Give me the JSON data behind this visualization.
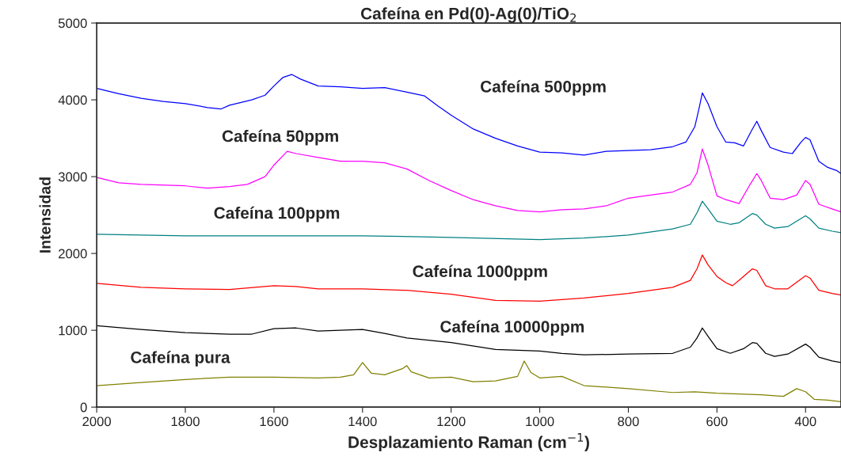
{
  "chart_data": {
    "type": "line",
    "title": "Cafeína en Pd(0)-Ag(0)/TiO$_{2}$",
    "xlabel": "Desplazamiento Raman (cm$^{−1}$)",
    "ylabel": "Intensidad",
    "xlim": [
      2000,
      320
    ],
    "xticks": [
      2000,
      1800,
      1600,
      1400,
      1200,
      1000,
      800,
      600,
      400
    ],
    "ylim": [
      0,
      5000
    ],
    "yticks": [
      0,
      1000,
      2000,
      3000,
      4000,
      5000
    ],
    "grid": false,
    "series": [
      {
        "name": "Cafeína 500ppm",
        "color": "#0000ff",
        "x": [
          2000,
          1950,
          1900,
          1850,
          1800,
          1750,
          1720,
          1700,
          1650,
          1620,
          1600,
          1580,
          1560,
          1540,
          1500,
          1450,
          1400,
          1350,
          1300,
          1260,
          1230,
          1200,
          1150,
          1100,
          1050,
          1000,
          950,
          900,
          850,
          800,
          750,
          700,
          670,
          650,
          640,
          633,
          620,
          600,
          580,
          560,
          540,
          520,
          510,
          500,
          480,
          450,
          430,
          410,
          400,
          390,
          370,
          350,
          330,
          320
        ],
        "values": [
          4150,
          4080,
          4020,
          3980,
          3950,
          3900,
          3880,
          3930,
          4000,
          4060,
          4180,
          4290,
          4330,
          4270,
          4180,
          4170,
          4150,
          4160,
          4100,
          4050,
          3920,
          3800,
          3620,
          3500,
          3400,
          3320,
          3310,
          3280,
          3330,
          3340,
          3350,
          3390,
          3450,
          3650,
          3900,
          4090,
          3950,
          3650,
          3450,
          3440,
          3400,
          3620,
          3720,
          3600,
          3380,
          3320,
          3300,
          3450,
          3510,
          3480,
          3200,
          3120,
          3080,
          3040
        ]
      },
      {
        "name": "Cafeína 50ppm",
        "color": "#ff00ff",
        "x": [
          2000,
          1950,
          1900,
          1800,
          1750,
          1700,
          1660,
          1620,
          1600,
          1570,
          1550,
          1500,
          1450,
          1400,
          1350,
          1300,
          1250,
          1200,
          1150,
          1100,
          1050,
          1000,
          950,
          900,
          850,
          800,
          750,
          700,
          660,
          645,
          633,
          620,
          600,
          580,
          550,
          525,
          510,
          500,
          480,
          450,
          420,
          400,
          390,
          370,
          340,
          320
        ],
        "values": [
          2990,
          2920,
          2900,
          2880,
          2850,
          2870,
          2900,
          3000,
          3150,
          3330,
          3300,
          3250,
          3200,
          3200,
          3180,
          3100,
          2950,
          2820,
          2700,
          2620,
          2560,
          2540,
          2570,
          2580,
          2620,
          2720,
          2760,
          2800,
          2900,
          3050,
          3360,
          3150,
          2750,
          2700,
          2650,
          2900,
          3040,
          2950,
          2720,
          2700,
          2760,
          2950,
          2900,
          2640,
          2580,
          2540
        ]
      },
      {
        "name": "Cafeína 100ppm",
        "color": "#008080",
        "x": [
          2000,
          1800,
          1600,
          1400,
          1200,
          1000,
          900,
          800,
          700,
          660,
          645,
          633,
          620,
          600,
          570,
          550,
          520,
          510,
          490,
          470,
          440,
          400,
          390,
          370,
          340,
          320
        ],
        "values": [
          2250,
          2230,
          2230,
          2230,
          2210,
          2180,
          2200,
          2240,
          2320,
          2380,
          2530,
          2680,
          2580,
          2420,
          2380,
          2400,
          2520,
          2500,
          2380,
          2330,
          2350,
          2490,
          2450,
          2330,
          2290,
          2270
        ]
      },
      {
        "name": "Cafeína 1000ppm",
        "color": "#ff0000",
        "x": [
          2000,
          1900,
          1800,
          1700,
          1600,
          1550,
          1500,
          1400,
          1300,
          1200,
          1100,
          1000,
          900,
          800,
          700,
          660,
          645,
          633,
          620,
          600,
          580,
          565,
          550,
          520,
          510,
          490,
          470,
          440,
          400,
          390,
          370,
          340,
          320
        ],
        "values": [
          1610,
          1560,
          1540,
          1530,
          1580,
          1570,
          1540,
          1540,
          1520,
          1470,
          1390,
          1380,
          1420,
          1480,
          1560,
          1650,
          1800,
          1980,
          1850,
          1700,
          1620,
          1580,
          1650,
          1800,
          1780,
          1580,
          1540,
          1540,
          1710,
          1680,
          1520,
          1480,
          1460
        ]
      },
      {
        "name": "Cafeína 10000ppm",
        "color": "#000000",
        "x": [
          2000,
          1900,
          1800,
          1700,
          1650,
          1600,
          1550,
          1500,
          1400,
          1350,
          1300,
          1200,
          1100,
          1000,
          950,
          900,
          800,
          700,
          660,
          645,
          633,
          620,
          600,
          570,
          540,
          520,
          510,
          490,
          470,
          440,
          400,
          390,
          370,
          340,
          320
        ],
        "values": [
          1060,
          1010,
          970,
          950,
          950,
          1020,
          1030,
          990,
          1010,
          960,
          900,
          840,
          750,
          730,
          700,
          680,
          690,
          700,
          780,
          900,
          1030,
          920,
          760,
          700,
          760,
          840,
          830,
          700,
          660,
          690,
          820,
          780,
          650,
          600,
          580
        ]
      },
      {
        "name": "Cafeína pura",
        "color": "#808000",
        "x": [
          2000,
          1900,
          1800,
          1700,
          1600,
          1500,
          1450,
          1420,
          1400,
          1380,
          1350,
          1310,
          1300,
          1290,
          1250,
          1200,
          1150,
          1100,
          1050,
          1035,
          1020,
          1000,
          950,
          900,
          800,
          700,
          650,
          600,
          550,
          500,
          450,
          420,
          400,
          380,
          350,
          320
        ],
        "values": [
          280,
          320,
          360,
          390,
          390,
          380,
          390,
          420,
          580,
          440,
          420,
          500,
          540,
          460,
          380,
          390,
          330,
          340,
          400,
          600,
          450,
          380,
          400,
          280,
          240,
          190,
          200,
          180,
          170,
          160,
          140,
          240,
          200,
          100,
          90,
          70
        ]
      }
    ]
  }
}
